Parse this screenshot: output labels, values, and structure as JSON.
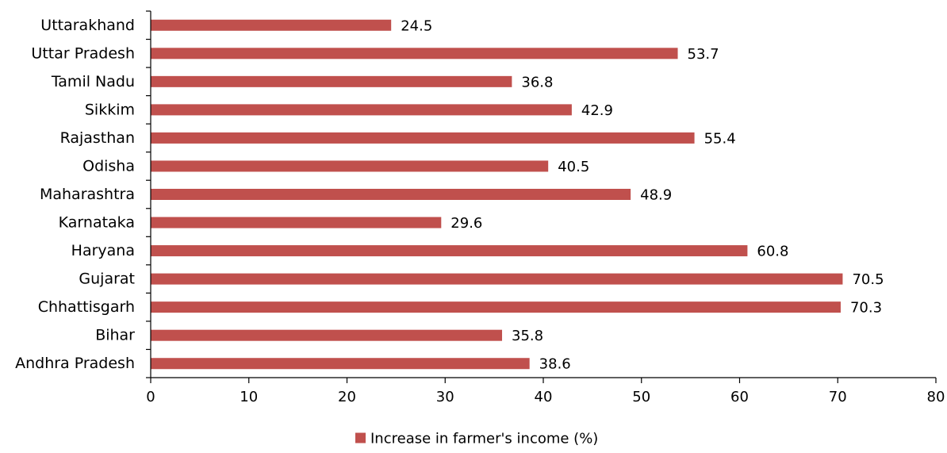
{
  "chart_data": {
    "type": "bar",
    "orientation": "horizontal",
    "categories": [
      "Uttarakhand",
      "Uttar Pradesh",
      "Tamil Nadu",
      "Sikkim",
      "Rajasthan",
      "Odisha",
      "Maharashtra",
      "Karnataka",
      "Haryana",
      "Gujarat",
      "Chhattisgarh",
      "Bihar",
      "Andhra Pradesh"
    ],
    "series": [
      {
        "name": "Increase in farmer's income (%)",
        "color": "#c0504d",
        "values": [
          24.5,
          53.7,
          36.8,
          42.9,
          55.4,
          40.5,
          48.9,
          29.6,
          60.8,
          70.5,
          70.3,
          35.8,
          38.6
        ]
      }
    ],
    "xlim": [
      0,
      80
    ],
    "xticks": [
      0,
      10,
      20,
      30,
      40,
      50,
      60,
      70,
      80
    ],
    "grid": false,
    "legend_position": "bottom-center",
    "data_labels": true
  }
}
